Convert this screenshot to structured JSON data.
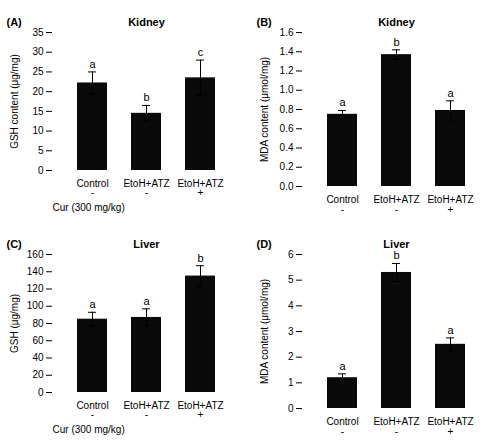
{
  "chart_data": [
    {
      "type": "bar",
      "panel_label": "(A)",
      "title": "Kidney",
      "ylabel": "GSH content (μg/mg)",
      "categories": [
        "Control",
        "EtoH+ATZ",
        "EtoH+ATZ"
      ],
      "values": [
        22.2,
        14.5,
        23.5
      ],
      "errors": [
        2.8,
        2.0,
        4.5
      ],
      "letters": [
        "a",
        "b",
        "c"
      ],
      "cur_label": "Cur (300 mg/kg)",
      "cur_labels": [
        "-",
        "-",
        "+"
      ],
      "color": "#0a0a0a",
      "ylim": [
        0,
        35
      ],
      "yticks": [
        0,
        5,
        10,
        15,
        20,
        25,
        30,
        35
      ]
    },
    {
      "type": "bar",
      "panel_label": "(B)",
      "title": "Kidney",
      "ylabel": "MDA content (μmol/mg)",
      "categories": [
        "Control\n-",
        "EtoH+ATZ\n-",
        "EtoH+ATZ\n+"
      ],
      "values": [
        0.75,
        1.37,
        0.79
      ],
      "errors": [
        0.04,
        0.05,
        0.1
      ],
      "letters": [
        "a",
        "b",
        "a"
      ],
      "color": "#0a0a0a",
      "ylim": [
        0,
        1.6
      ],
      "yticks": [
        {
          "value": 0,
          "label": "0.0"
        },
        0.2,
        0.4,
        0.6,
        0.8,
        {
          "value": 1,
          "label": "1.0"
        },
        1.2,
        1.4,
        1.6
      ]
    },
    {
      "type": "bar",
      "panel_label": "(C)",
      "title": "Liver",
      "ylabel": "GSH (μg/mg)",
      "categories": [
        "Control",
        "EtoH+ATZ",
        "EtoH+ATZ"
      ],
      "values": [
        85,
        87,
        135
      ],
      "errors": [
        8,
        10,
        12
      ],
      "letters": [
        "a",
        "a",
        "b"
      ],
      "cur_label": "Cur (300 mg/kg)",
      "cur_labels": [
        "-",
        "-",
        "+"
      ],
      "color": "#0a0a0a",
      "ylim": [
        0,
        160
      ],
      "yticks": [
        0,
        20,
        40,
        60,
        80,
        100,
        120,
        140,
        160
      ]
    },
    {
      "type": "bar",
      "panel_label": "(D)",
      "title": "Liver",
      "ylabel": "MDA content (μmol/mg)",
      "categories": [
        "Control\n-",
        "EtoH+ATZ\n-",
        "EtoH+ATZ\n+"
      ],
      "values": [
        1.2,
        5.3,
        2.5
      ],
      "errors": [
        0.15,
        0.35,
        0.25
      ],
      "letters": [
        "a",
        "b",
        "a"
      ],
      "color": "#0a0a0a",
      "ylim": [
        0,
        6
      ],
      "yticks": [
        0,
        1,
        2,
        3,
        4,
        5,
        6
      ]
    }
  ]
}
